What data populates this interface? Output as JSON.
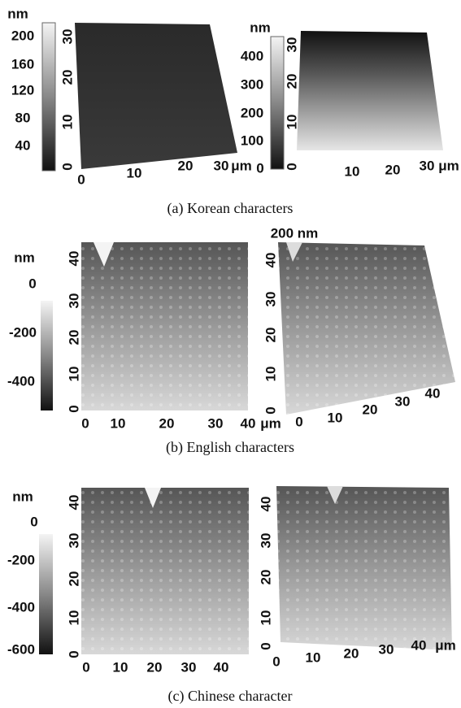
{
  "panels": [
    {
      "caption": "(a) Korean characters",
      "left": {
        "unit": "nm",
        "colorbar_labels": [
          "200",
          "160",
          "120",
          "80",
          "40"
        ],
        "y_labels": [
          "30",
          "20",
          "10",
          "0"
        ],
        "x_labels": [
          "0",
          "10",
          "20",
          "30"
        ],
        "x_unit": "μm"
      },
      "right": {
        "unit": "nm",
        "colorbar_labels": [
          "400",
          "300",
          "200",
          "100",
          "0"
        ],
        "y_labels": [
          "30",
          "20",
          "10",
          "0"
        ],
        "x_labels": [
          "10",
          "20",
          "30"
        ],
        "x_unit": "μm"
      }
    },
    {
      "caption": "(b) English characters",
      "left": {
        "unit": "nm",
        "colorbar_labels": [
          "0",
          "-200",
          "-400"
        ],
        "y_labels": [
          "40",
          "30",
          "20",
          "10",
          "0"
        ],
        "x_labels": [
          "0",
          "10",
          "20",
          "30",
          "40"
        ],
        "x_unit": "μm"
      },
      "right": {
        "unit": "200 nm",
        "y_labels": [
          "40",
          "30",
          "20",
          "10",
          "0"
        ],
        "x_labels": [
          "0",
          "10",
          "20",
          "30",
          "40"
        ]
      }
    },
    {
      "caption": "(c) Chinese character",
      "left": {
        "unit": "nm",
        "colorbar_labels": [
          "0",
          "-200",
          "-400",
          "-600"
        ],
        "y_labels": [
          "40",
          "30",
          "20",
          "10",
          "0"
        ],
        "x_labels": [
          "0",
          "10",
          "20",
          "30",
          "40"
        ]
      },
      "right": {
        "y_labels": [
          "40",
          "30",
          "20",
          "10",
          "0"
        ],
        "x_labels": [
          "0",
          "10",
          "20",
          "30",
          "40"
        ],
        "x_unit": "μm"
      }
    }
  ]
}
